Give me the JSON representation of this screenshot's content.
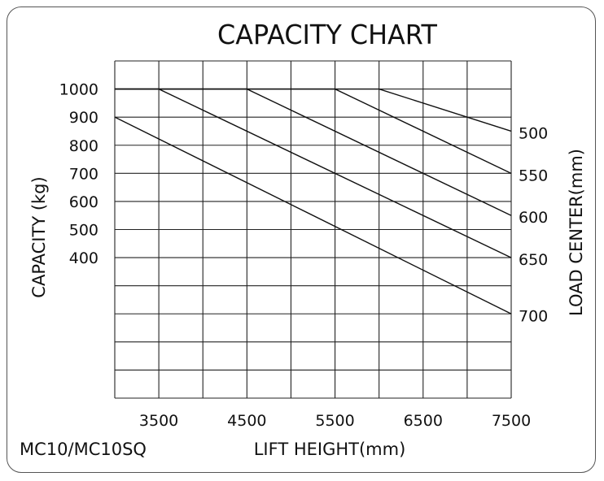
{
  "chart_data": {
    "type": "line",
    "title": "CAPACITY CHART",
    "xlabel": "LIFT HEIGHT(mm)",
    "ylabel": "CAPACITY (kg)",
    "y2label": "LOAD CENTER(mm)",
    "model": "MC10/MC10SQ",
    "xlim": [
      3000,
      7500
    ],
    "ylim": [
      -100,
      1100
    ],
    "x_ticks": [
      "3500",
      "4500",
      "5500",
      "6500",
      "7500"
    ],
    "x_tick_values": [
      3500,
      4500,
      5500,
      6500,
      7500
    ],
    "y_ticks": [
      "1000",
      "900",
      "800",
      "700",
      "600",
      "500",
      "400"
    ],
    "y_tick_values": [
      1000,
      900,
      800,
      700,
      600,
      500,
      400
    ],
    "grid": true,
    "series": [
      {
        "name": "500",
        "x": [
          3000,
          6000,
          7500
        ],
        "y": [
          1000,
          1000,
          850
        ]
      },
      {
        "name": "550",
        "x": [
          3000,
          5500,
          7500
        ],
        "y": [
          1000,
          1000,
          700
        ]
      },
      {
        "name": "600",
        "x": [
          3000,
          4500,
          7500
        ],
        "y": [
          1000,
          1000,
          550
        ]
      },
      {
        "name": "650",
        "x": [
          3000,
          3500,
          7500
        ],
        "y": [
          1000,
          1000,
          400
        ]
      },
      {
        "name": "700",
        "x": [
          3000,
          7500
        ],
        "y": [
          900,
          200
        ]
      }
    ]
  }
}
